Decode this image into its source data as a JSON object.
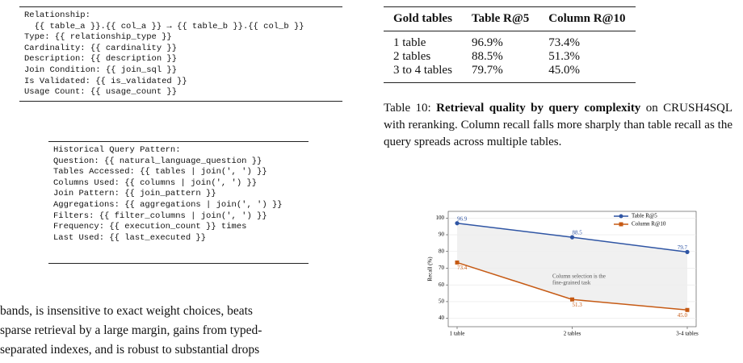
{
  "code_blocks": [
    {
      "lines": [
        "Relationship:",
        "  {{ table_a }}.{{ col_a }} → {{ table_b }}.{{ col_b }}",
        "Type: {{ relationship_type }}",
        "Cardinality: {{ cardinality }}",
        "Description: {{ description }}",
        "Join Condition: {{ join_sql }}",
        "Is Validated: {{ is_validated }}",
        "Usage Count: {{ usage_count }}"
      ]
    },
    {
      "lines": [
        "Historical Query Pattern:",
        "Question: {{ natural_language_question }}",
        "Tables Accessed: {{ tables | join(', ') }}",
        "Columns Used: {{ columns | join(', ') }}",
        "Join Pattern: {{ join_pattern }}",
        "Aggregations: {{ aggregations | join(', ') }}",
        "Filters: {{ filter_columns | join(', ') }}",
        "Frequency: {{ execution_count }} times",
        "Last Used: {{ last_executed }}"
      ]
    }
  ],
  "body_text": [
    "bands, is insensitive to exact weight choices, beats",
    "sparse retrieval by a large margin, gains from typed-",
    "separated indexes, and is robust to substantial drops"
  ],
  "table": {
    "header": [
      "Gold tables",
      "Table R@5",
      "Column R@10"
    ],
    "rows": [
      [
        "1 table",
        "96.9%",
        "73.4%"
      ],
      [
        "2 tables",
        "88.5%",
        "51.3%"
      ],
      [
        "3 to 4 tables",
        "79.7%",
        "45.0%"
      ]
    ]
  },
  "caption": {
    "label": "Table 10:",
    "bold": "Retrieval quality by query complexity",
    "text": "on CRUSH4SQL with reranking. Column recall falls more sharply than table recall as the query spreads across multiple tables."
  },
  "chart_data": {
    "type": "line",
    "y_label": "Recall (%)",
    "categories": [
      "1 table",
      "2 tables",
      "3-4 tables"
    ],
    "series": [
      {
        "name": "Table R@5",
        "color": "#2f55a4",
        "marker": "circle",
        "values": [
          96.9,
          88.5,
          79.7
        ],
        "value_labels": [
          "96.9",
          "88.5",
          "79.7"
        ]
      },
      {
        "name": "Column R@10",
        "color": "#c65a14",
        "marker": "square",
        "values": [
          73.4,
          51.3,
          45.0
        ],
        "value_labels": [
          "73.4",
          "51.3",
          "45.0"
        ]
      }
    ],
    "annotation": [
      "Column selection is the",
      "fine-grained task"
    ],
    "ylim": [
      35,
      104
    ],
    "yticks": [
      40,
      50,
      60,
      70,
      80,
      90,
      100
    ],
    "grid": true,
    "legend": "upper right"
  }
}
